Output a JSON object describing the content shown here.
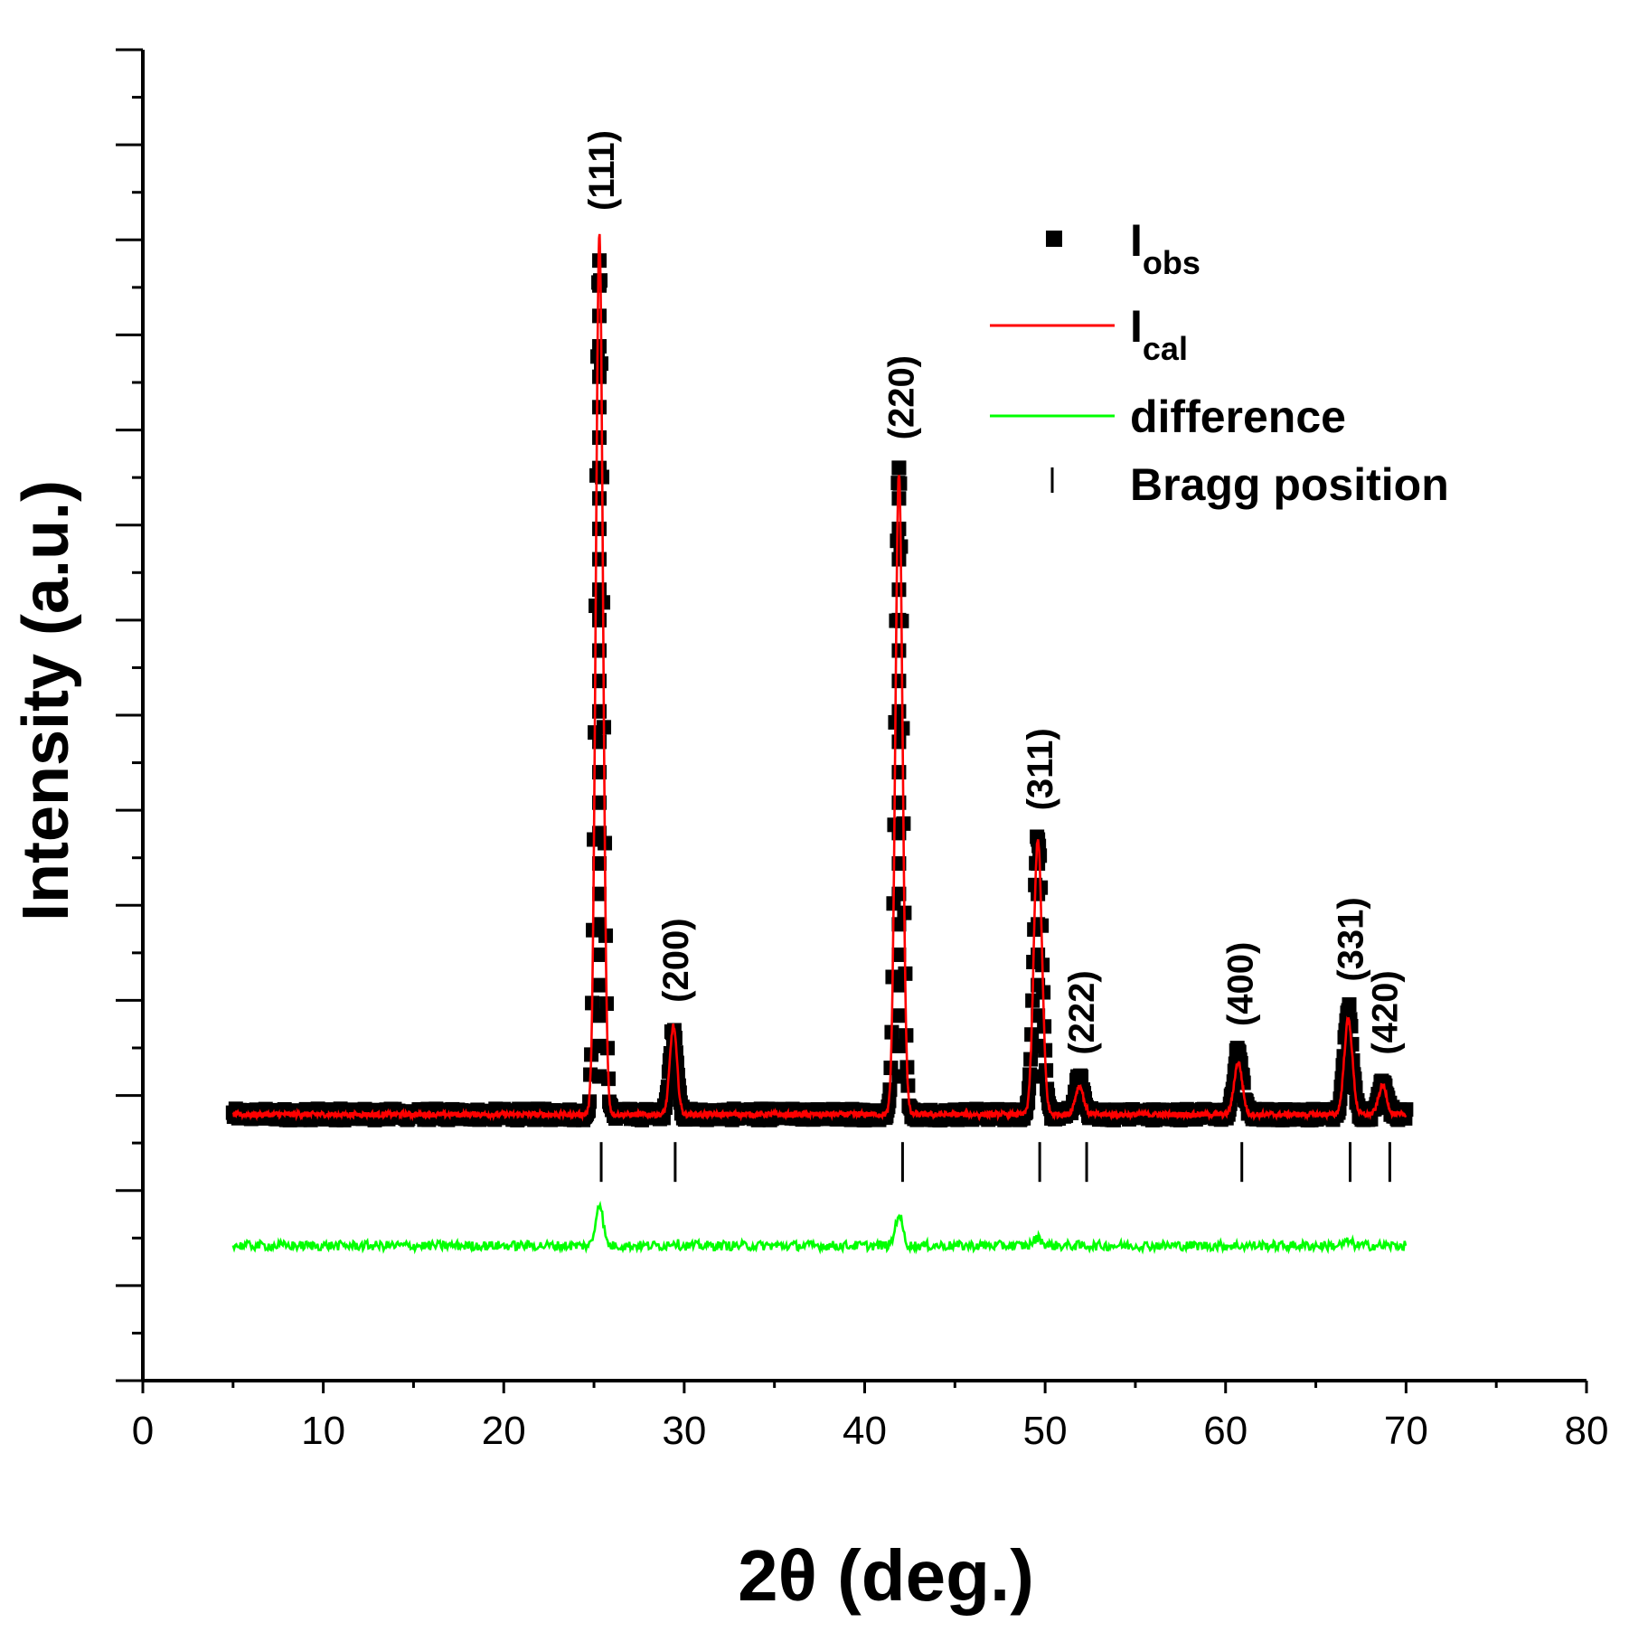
{
  "chart_data": {
    "type": "line",
    "title": "",
    "xlabel": "2θ (deg.)",
    "ylabel": "Intensity (a.u.)",
    "xlim": [
      0,
      80
    ],
    "x_ticks": [
      0,
      10,
      20,
      30,
      40,
      50,
      60,
      70,
      80
    ],
    "x_tick_labels": [
      "0",
      "10",
      "20",
      "30",
      "40",
      "50",
      "60",
      "70",
      "80"
    ],
    "ylim": [
      -0.28,
      1.12
    ],
    "y_tick_labels_shown": false,
    "grid": false,
    "legend_position": "top-right",
    "legend": [
      {
        "key": "obs",
        "label": "I",
        "sub": "obs",
        "style": "square-marker",
        "color": "#000000"
      },
      {
        "key": "cal",
        "label": "I",
        "sub": "cal",
        "style": "line",
        "color": "#ff0000"
      },
      {
        "key": "diff",
        "label": "difference",
        "style": "line",
        "color": "#00ff00"
      },
      {
        "key": "bragg",
        "label": "Bragg position",
        "style": "vertical-tick",
        "color": "#000000"
      }
    ],
    "x_range": [
      5,
      70
    ],
    "background": 0.0,
    "difference_offset": -0.138,
    "bragg_row": -0.05,
    "peaks": [
      {
        "hkl": "(111)",
        "two_theta": 25.3,
        "obs": 0.9,
        "cal": 0.926,
        "diff": 0.045
      },
      {
        "hkl": "(200)",
        "two_theta": 29.4,
        "obs": 0.093,
        "cal": 0.093,
        "diff": 0.004
      },
      {
        "hkl": "(220)",
        "two_theta": 41.9,
        "obs": 0.685,
        "cal": 0.675,
        "diff": 0.033
      },
      {
        "hkl": "(311)",
        "two_theta": 49.6,
        "obs": 0.295,
        "cal": 0.29,
        "diff": 0.008
      },
      {
        "hkl": "(222)",
        "two_theta": 51.9,
        "obs": 0.038,
        "cal": 0.03,
        "diff": 0.0
      },
      {
        "hkl": "(400)",
        "two_theta": 60.7,
        "obs": 0.068,
        "cal": 0.055,
        "diff": 0.0
      },
      {
        "hkl": "(331)",
        "two_theta": 66.8,
        "obs": 0.115,
        "cal": 0.1,
        "diff": 0.004
      },
      {
        "hkl": "(420)",
        "two_theta": 68.7,
        "obs": 0.038,
        "cal": 0.03,
        "diff": 0.0
      }
    ],
    "bragg_positions": [
      25.4,
      29.5,
      42.1,
      49.7,
      52.3,
      60.9,
      66.9,
      69.1
    ]
  },
  "colors": {
    "obs": "#000000",
    "cal": "#ff0000",
    "diff": "#00ff00",
    "axis": "#000000"
  }
}
